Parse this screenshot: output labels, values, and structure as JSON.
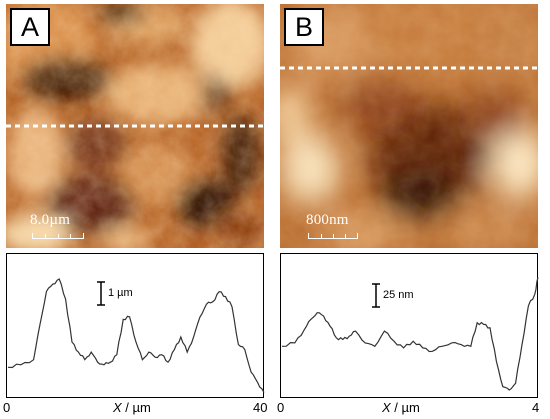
{
  "panels": [
    {
      "letter": "A",
      "scale_bar_label": "8.0µm",
      "profile": {
        "z_scale_label": "1 µm",
        "x_ticks": [
          "0",
          "40"
        ],
        "x_axis_label": {
          "var": "X",
          "unit": " / µm"
        }
      }
    },
    {
      "letter": "B",
      "scale_bar_label": "800nm",
      "profile": {
        "z_scale_label": "25 nm",
        "x_ticks": [
          "0",
          "4"
        ],
        "x_axis_label": {
          "var": "X",
          "unit": " / µm"
        }
      }
    }
  ],
  "colors": {
    "afm_dark": "#2a0c02",
    "afm_mid": "#a8541a",
    "afm_light": "#f7e2bc",
    "profile_line": "#333333",
    "section_line": "#ffffff"
  },
  "chart_data": [
    {
      "type": "line",
      "title": "",
      "xlabel": "X / µm",
      "ylabel": "",
      "xlim": [
        0,
        40
      ],
      "series": [
        {
          "x": [
            0,
            2,
            4,
            5,
            6,
            7,
            8,
            9,
            10,
            11,
            12,
            13,
            14,
            15,
            16,
            17,
            18,
            19,
            20,
            21,
            22,
            23,
            24,
            25,
            26,
            27,
            28,
            29,
            30,
            31,
            32,
            33,
            34,
            35,
            36,
            37,
            38,
            39,
            40
          ],
          "y": [
            0.25,
            0.3,
            0.4,
            1.1,
            1.75,
            1.9,
            2.0,
            1.6,
            0.75,
            0.55,
            0.4,
            0.55,
            0.35,
            0.3,
            0.35,
            0.5,
            1.2,
            1.25,
            0.75,
            0.4,
            0.55,
            0.45,
            0.5,
            0.35,
            0.6,
            0.85,
            0.55,
            0.85,
            1.25,
            1.5,
            1.55,
            1.75,
            1.65,
            1.45,
            0.7,
            0.6,
            0.15,
            -0.05,
            -0.25
          ]
        }
      ]
    },
    {
      "type": "line",
      "title": "",
      "xlabel": "X / µm",
      "ylabel": "",
      "xlim": [
        0,
        4
      ],
      "series": [
        {
          "x": [
            0,
            0.2,
            0.35,
            0.45,
            0.55,
            0.65,
            0.75,
            0.85,
            0.95,
            1.05,
            1.15,
            1.3,
            1.45,
            1.6,
            1.75,
            1.9,
            2.05,
            2.2,
            2.35,
            2.5,
            2.65,
            2.8,
            2.95,
            3.05,
            3.15,
            3.25,
            3.35,
            3.45,
            3.55,
            3.65,
            3.75,
            3.85,
            3.95,
            4.0
          ],
          "y": [
            4,
            6,
            14,
            20,
            24,
            22,
            16,
            9,
            8,
            10,
            13,
            6,
            4,
            13,
            7,
            3,
            7,
            3,
            1,
            4,
            6,
            5,
            4,
            18,
            17,
            15,
            -5,
            -20,
            -22,
            -18,
            5,
            28,
            35,
            45
          ]
        }
      ]
    }
  ]
}
